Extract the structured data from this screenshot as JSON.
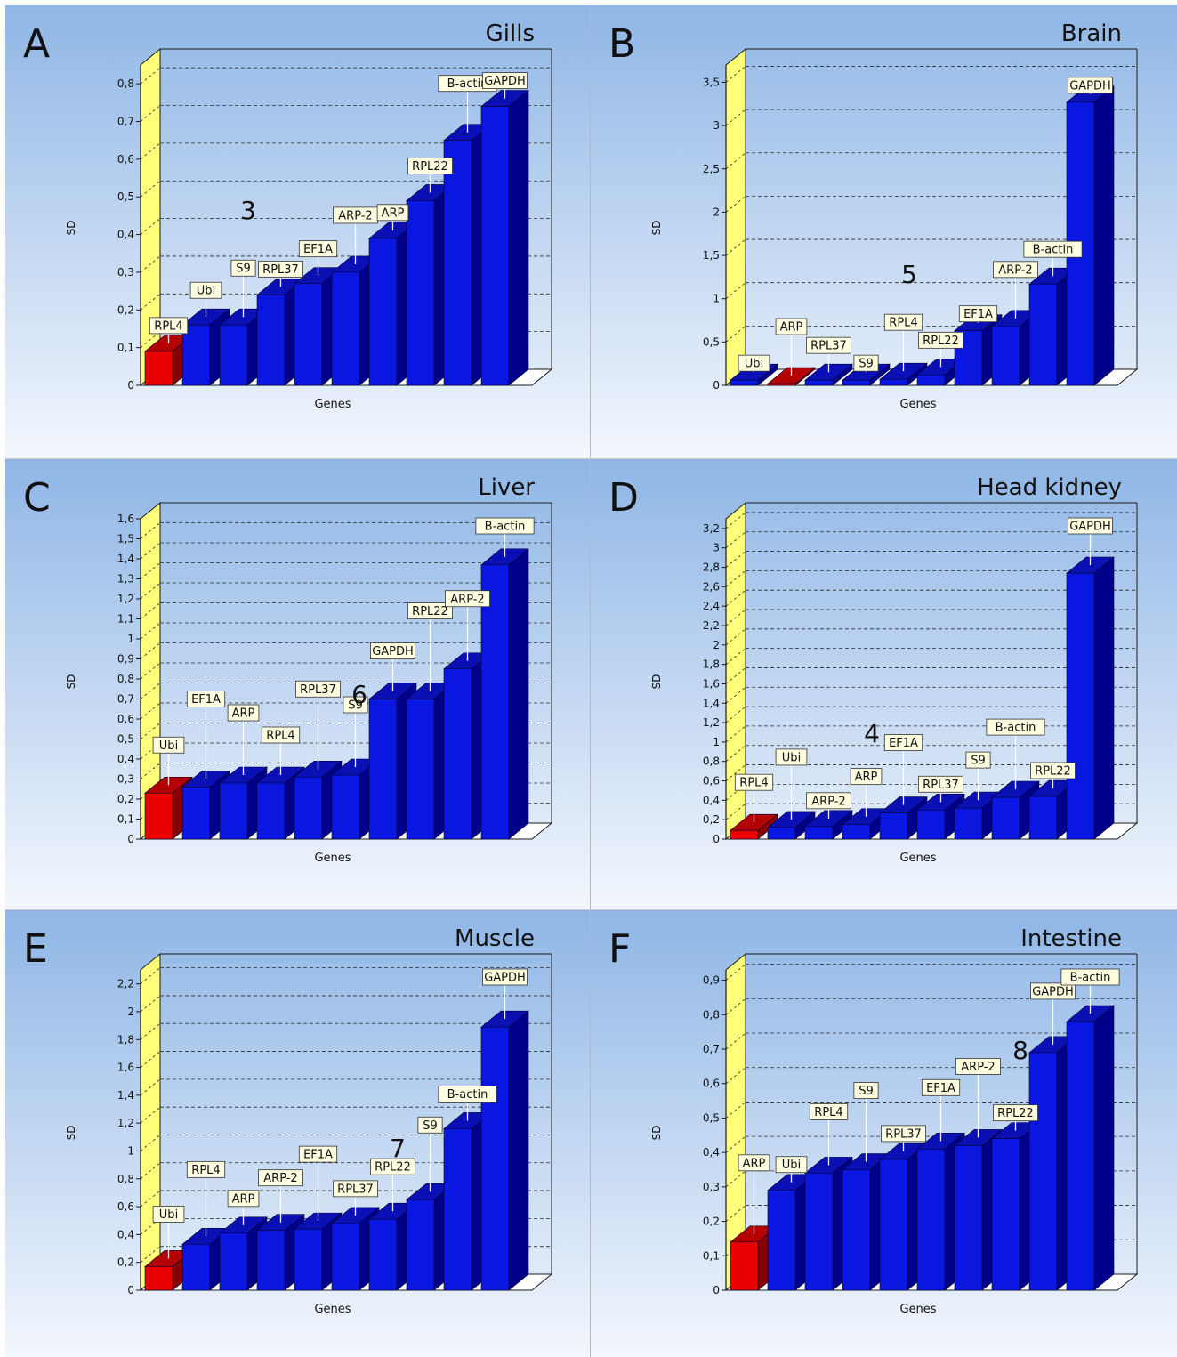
{
  "colors": {
    "bg_top": "#8fb6e6",
    "bg_bottom": "#f3f7fd",
    "bar_blue": "#0a17e0",
    "bar_blue_side": "#00008a",
    "bar_blue_top": "#0a10b4",
    "bar_red": "#e80000",
    "bar_red_side": "#8a0000",
    "bar_red_top": "#b40000",
    "wall_yellow": "#ffff7a",
    "label_fill": "#fffde0"
  },
  "chart_data": [
    {
      "type": "bar",
      "letter": "A",
      "title": "Gills",
      "xlabel": "Genes",
      "ylabel": "SD",
      "ylim": [
        0,
        0.85
      ],
      "yticks": [
        0,
        0.1,
        0.2,
        0.3,
        0.4,
        0.5,
        0.6,
        0.7,
        0.8
      ],
      "ytick_labels": [
        "0",
        "0,1",
        "0,2",
        "0,3",
        "0,4",
        "0,5",
        "0,6",
        "0,7",
        "0,8"
      ],
      "categories": [
        "RPL4",
        "Ubi",
        "S9",
        "RPL37",
        "EF1A",
        "ARP-2",
        "ARP",
        "RPL22",
        "B-actin",
        "GAPDH"
      ],
      "values": [
        0.09,
        0.16,
        0.16,
        0.24,
        0.27,
        0.3,
        0.39,
        0.49,
        0.65,
        0.74
      ],
      "highlight_index": 0,
      "annotation": "3",
      "legend": "none"
    },
    {
      "type": "bar",
      "letter": "B",
      "title": "Brain",
      "xlabel": "Genes",
      "ylabel": "SD",
      "ylim": [
        0,
        3.7
      ],
      "yticks": [
        0,
        0.5,
        1,
        1.5,
        2,
        2.5,
        3,
        3.5
      ],
      "ytick_labels": [
        "0",
        "0,5",
        "1",
        "1,5",
        "2",
        "2,5",
        "3",
        "3,5"
      ],
      "categories": [
        "Ubi",
        "ARP",
        "RPL37",
        "S9",
        "RPL4",
        "RPL22",
        "EF1A",
        "ARP-2",
        "B-actin",
        "GAPDH"
      ],
      "values": [
        0.06,
        0.02,
        0.06,
        0.06,
        0.07,
        0.12,
        0.63,
        0.68,
        1.17,
        3.27
      ],
      "highlight_index": 1,
      "annotation": "5",
      "legend": "none"
    },
    {
      "type": "bar",
      "letter": "C",
      "title": "Liver",
      "xlabel": "Genes",
      "ylabel": "SD",
      "ylim": [
        0,
        1.6
      ],
      "yticks": [
        0,
        0.1,
        0.2,
        0.3,
        0.4,
        0.5,
        0.6,
        0.7,
        0.8,
        0.9,
        1,
        1.1,
        1.2,
        1.3,
        1.4,
        1.5,
        1.6
      ],
      "ytick_labels": [
        "0",
        "0,1",
        "0,2",
        "0,3",
        "0,4",
        "0,5",
        "0,6",
        "0,7",
        "0,8",
        "0,9",
        "1",
        "1,1",
        "1,2",
        "1,3",
        "1,4",
        "1,5",
        "1,6"
      ],
      "categories": [
        "Ubi",
        "EF1A",
        "ARP",
        "RPL4",
        "RPL37",
        "S9",
        "GAPDH",
        "RPL22",
        "ARP-2",
        "B-actin"
      ],
      "values": [
        0.23,
        0.26,
        0.28,
        0.28,
        0.31,
        0.32,
        0.7,
        0.7,
        0.85,
        1.37
      ],
      "highlight_index": 0,
      "annotation": "6",
      "legend": "none"
    },
    {
      "type": "bar",
      "letter": "D",
      "title": "Head kidney",
      "xlabel": "Genes",
      "ylabel": "SD",
      "ylim": [
        0,
        3.3
      ],
      "yticks": [
        0,
        0.2,
        0.4,
        0.6,
        0.8,
        1,
        1.2,
        1.4,
        1.6,
        1.8,
        2,
        2.2,
        2.4,
        2.6,
        2.8,
        3,
        3.2
      ],
      "ytick_labels": [
        "0",
        "0,2",
        "0,4",
        "0,6",
        "0,8",
        "1",
        "1,2",
        "1,4",
        "1,6",
        "1,8",
        "2",
        "2,2",
        "2,4",
        "2,6",
        "2,8",
        "3",
        "3,2"
      ],
      "categories": [
        "RPL4",
        "Ubi",
        "ARP-2",
        "ARP",
        "EF1A",
        "RPL37",
        "S9",
        "B-actin",
        "RPL22",
        "GAPDH"
      ],
      "values": [
        0.09,
        0.12,
        0.13,
        0.15,
        0.27,
        0.3,
        0.32,
        0.43,
        0.44,
        2.74
      ],
      "highlight_index": 0,
      "annotation": "4",
      "legend": "none"
    },
    {
      "type": "bar",
      "letter": "E",
      "title": "Muscle",
      "xlabel": "Genes",
      "ylabel": "SD",
      "ylim": [
        0,
        2.3
      ],
      "yticks": [
        0,
        0.2,
        0.4,
        0.6,
        0.8,
        1,
        1.2,
        1.4,
        1.6,
        1.8,
        2,
        2.2
      ],
      "ytick_labels": [
        "0",
        "0,2",
        "0,4",
        "0,6",
        "0,8",
        "1",
        "1,2",
        "1,4",
        "1,6",
        "1,8",
        "2",
        "2,2"
      ],
      "categories": [
        "Ubi",
        "RPL4",
        "ARP",
        "ARP-2",
        "EF1A",
        "RPL37",
        "RPL22",
        "S9",
        "B-actin",
        "GAPDH"
      ],
      "values": [
        0.17,
        0.33,
        0.41,
        0.43,
        0.44,
        0.48,
        0.51,
        0.65,
        1.16,
        1.89
      ],
      "highlight_index": 0,
      "annotation": "7",
      "legend": "none"
    },
    {
      "type": "bar",
      "letter": "F",
      "title": "Intestine",
      "xlabel": "Genes",
      "ylabel": "SD",
      "ylim": [
        0,
        0.93
      ],
      "yticks": [
        0,
        0.1,
        0.2,
        0.3,
        0.4,
        0.5,
        0.6,
        0.7,
        0.8,
        0.9
      ],
      "ytick_labels": [
        "0",
        "0,1",
        "0,2",
        "0,3",
        "0,4",
        "0,5",
        "0,6",
        "0,7",
        "0,8",
        "0,9"
      ],
      "categories": [
        "ARP",
        "Ubi",
        "RPL4",
        "S9",
        "RPL37",
        "EF1A",
        "ARP-2",
        "RPL22",
        "GAPDH",
        "B-actin"
      ],
      "values": [
        0.14,
        0.29,
        0.34,
        0.35,
        0.38,
        0.41,
        0.42,
        0.44,
        0.69,
        0.78
      ],
      "highlight_index": 0,
      "annotation": "8",
      "legend": "none"
    }
  ]
}
